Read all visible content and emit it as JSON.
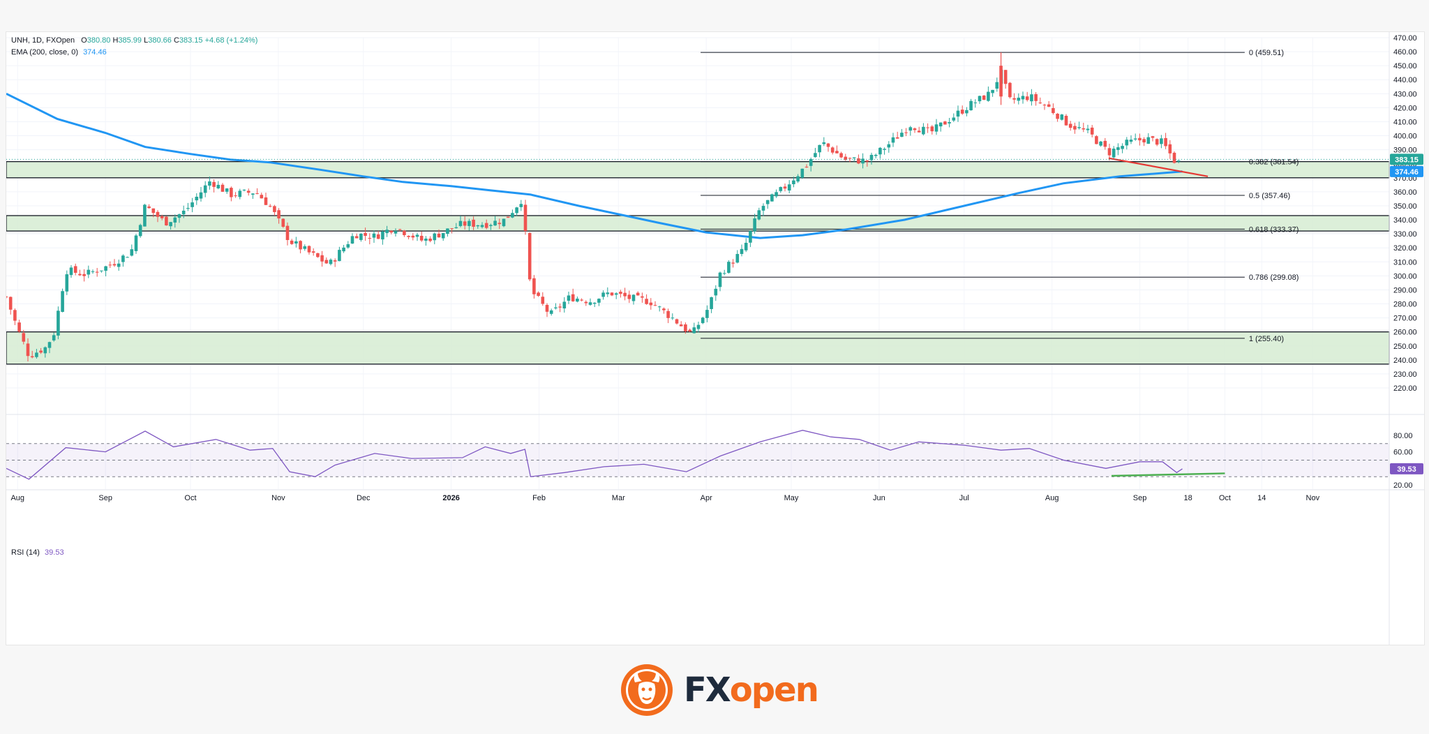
{
  "header": {
    "symbol": "UNH, 1D, FXOpen",
    "o_label": "O",
    "o": "380.80",
    "h_label": "H",
    "h": "385.99",
    "l_label": "L",
    "l": "380.66",
    "c_label": "C",
    "c": "383.15",
    "change": "+4.68 (+1.24%)",
    "ema_label": "EMA (200, close, 0)",
    "ema_value": "374.46",
    "rsi_label": "RSI (14)",
    "rsi_value": "39.53"
  },
  "colors": {
    "up": "#26a69a",
    "down": "#ef5350",
    "ema": "#2196f3",
    "rsi": "#7e57c2",
    "zone": "#d6ecd2",
    "trend_red": "#e53935",
    "trend_green": "#4caf50",
    "fib_line": "#131722"
  },
  "chart_data": {
    "type": "candlestick",
    "price_axis": {
      "ylim": [
        220,
        470
      ],
      "ticks": [
        "470.00",
        "460.00",
        "450.00",
        "440.00",
        "430.00",
        "420.00",
        "410.00",
        "400.00",
        "390.00",
        "380.00",
        "370.00",
        "360.00",
        "350.00",
        "340.00",
        "330.00",
        "320.00",
        "310.00",
        "300.00",
        "290.00",
        "280.00",
        "270.00",
        "260.00",
        "250.00",
        "240.00",
        "230.00",
        "220.00"
      ]
    },
    "time_axis": {
      "labels": [
        "Aug",
        "Sep",
        "Oct",
        "Nov",
        "Dec",
        "2026",
        "Feb",
        "Mar",
        "Apr",
        "May",
        "Jun",
        "Jul",
        "Aug",
        "Sep",
        "18",
        "Oct",
        "14",
        "Nov"
      ]
    },
    "price_tags": {
      "close": "383.15",
      "ema": "374.46"
    },
    "close_path": [
      {
        "date": "2025-07-28",
        "close": 285
      },
      {
        "date": "2025-08-01",
        "close": 262
      },
      {
        "date": "2025-08-05",
        "close": 243
      },
      {
        "date": "2025-08-11",
        "close": 249
      },
      {
        "date": "2025-08-14",
        "close": 260
      },
      {
        "date": "2025-08-18",
        "close": 304
      },
      {
        "date": "2025-08-25",
        "close": 301
      },
      {
        "date": "2025-09-02",
        "close": 307
      },
      {
        "date": "2025-09-10",
        "close": 317
      },
      {
        "date": "2025-09-15",
        "close": 350
      },
      {
        "date": "2025-09-22",
        "close": 338
      },
      {
        "date": "2025-09-29",
        "close": 346
      },
      {
        "date": "2025-10-08",
        "close": 368
      },
      {
        "date": "2025-10-15",
        "close": 358
      },
      {
        "date": "2025-10-24",
        "close": 360
      },
      {
        "date": "2025-10-29",
        "close": 350
      },
      {
        "date": "2025-11-05",
        "close": 325
      },
      {
        "date": "2025-11-13",
        "close": 315
      },
      {
        "date": "2025-11-19",
        "close": 308
      },
      {
        "date": "2025-11-28",
        "close": 330
      },
      {
        "date": "2025-12-05",
        "close": 328
      },
      {
        "date": "2025-12-12",
        "close": 335
      },
      {
        "date": "2025-12-22",
        "close": 325
      },
      {
        "date": "2026-01-05",
        "close": 337
      },
      {
        "date": "2026-01-13",
        "close": 337
      },
      {
        "date": "2026-01-20",
        "close": 340
      },
      {
        "date": "2026-01-26",
        "close": 355
      },
      {
        "date": "2026-01-29",
        "close": 290
      },
      {
        "date": "2026-02-05",
        "close": 272
      },
      {
        "date": "2026-02-12",
        "close": 285
      },
      {
        "date": "2026-02-19",
        "close": 282
      },
      {
        "date": "2026-02-26",
        "close": 288
      },
      {
        "date": "2026-03-05",
        "close": 284
      },
      {
        "date": "2026-03-12",
        "close": 282
      },
      {
        "date": "2026-03-20",
        "close": 270
      },
      {
        "date": "2026-03-27",
        "close": 258
      },
      {
        "date": "2026-04-02",
        "close": 278
      },
      {
        "date": "2026-04-06",
        "close": 302
      },
      {
        "date": "2026-04-14",
        "close": 318
      },
      {
        "date": "2026-04-20",
        "close": 348
      },
      {
        "date": "2026-04-28",
        "close": 362
      },
      {
        "date": "2026-05-06",
        "close": 378
      },
      {
        "date": "2026-05-12",
        "close": 395
      },
      {
        "date": "2026-05-20",
        "close": 383
      },
      {
        "date": "2026-05-28",
        "close": 382
      },
      {
        "date": "2026-06-05",
        "close": 395
      },
      {
        "date": "2026-06-12",
        "close": 408
      },
      {
        "date": "2026-06-19",
        "close": 402
      },
      {
        "date": "2026-06-26",
        "close": 412
      },
      {
        "date": "2026-07-03",
        "close": 422
      },
      {
        "date": "2026-07-10",
        "close": 430
      },
      {
        "date": "2026-07-14",
        "close": 445
      },
      {
        "date": "2026-07-17",
        "close": 425
      },
      {
        "date": "2026-07-24",
        "close": 428
      },
      {
        "date": "2026-07-31",
        "close": 420
      },
      {
        "date": "2026-08-07",
        "close": 408
      },
      {
        "date": "2026-08-14",
        "close": 402
      },
      {
        "date": "2026-08-21",
        "close": 388
      },
      {
        "date": "2026-08-28",
        "close": 395
      },
      {
        "date": "2026-09-03",
        "close": 398
      },
      {
        "date": "2026-09-09",
        "close": 395
      },
      {
        "date": "2026-09-14",
        "close": 380
      },
      {
        "date": "2026-09-16",
        "close": 383.15
      }
    ],
    "spike": {
      "date": "2026-07-14",
      "high": 459.51
    },
    "ema200": [
      {
        "date": "2025-07-28",
        "value": 430
      },
      {
        "date": "2025-08-15",
        "value": 412
      },
      {
        "date": "2025-09-01",
        "value": 402
      },
      {
        "date": "2025-09-15",
        "value": 392
      },
      {
        "date": "2025-10-01",
        "value": 387
      },
      {
        "date": "2025-10-15",
        "value": 383
      },
      {
        "date": "2025-10-29",
        "value": 381
      },
      {
        "date": "2025-11-15",
        "value": 376
      },
      {
        "date": "2025-12-01",
        "value": 371
      },
      {
        "date": "2025-12-15",
        "value": 367
      },
      {
        "date": "2026-01-01",
        "value": 364
      },
      {
        "date": "2026-01-15",
        "value": 361
      },
      {
        "date": "2026-01-29",
        "value": 358
      },
      {
        "date": "2026-02-15",
        "value": 350
      },
      {
        "date": "2026-03-01",
        "value": 344
      },
      {
        "date": "2026-03-15",
        "value": 338
      },
      {
        "date": "2026-04-01",
        "value": 331
      },
      {
        "date": "2026-04-20",
        "value": 327
      },
      {
        "date": "2026-05-05",
        "value": 329
      },
      {
        "date": "2026-05-20",
        "value": 333
      },
      {
        "date": "2026-06-10",
        "value": 340
      },
      {
        "date": "2026-07-01",
        "value": 350
      },
      {
        "date": "2026-07-20",
        "value": 359
      },
      {
        "date": "2026-08-05",
        "value": 366
      },
      {
        "date": "2026-08-25",
        "value": 371
      },
      {
        "date": "2026-09-16",
        "value": 374.46
      }
    ],
    "zones": [
      {
        "from": 370,
        "to": 381.54
      },
      {
        "from": 332,
        "to": 343
      },
      {
        "from": 237,
        "to": 260
      }
    ],
    "fib_anchor": {
      "start_date": "2026-03-30",
      "end_date": "2026-10-08"
    },
    "fib_levels": [
      {
        "ratio": "0",
        "price": 459.51,
        "label": "0 (459.51)"
      },
      {
        "ratio": "0.382",
        "price": 381.54,
        "label": "0.382 (381.54)"
      },
      {
        "ratio": "0.5",
        "price": 357.46,
        "label": "0.5 (357.46)"
      },
      {
        "ratio": "0.618",
        "price": 333.37,
        "label": "0.618 (333.37)"
      },
      {
        "ratio": "0.786",
        "price": 299.08,
        "label": "0.786 (299.08)"
      },
      {
        "ratio": "1",
        "price": 255.4,
        "label": "1 (255.40)"
      }
    ],
    "trendline_price": {
      "start_date": "2026-08-21",
      "start": 384,
      "end_date": "2026-09-25",
      "end": 371
    },
    "rsi": {
      "ylim": [
        15,
        95
      ],
      "ticks": [
        "80.00",
        "60.00",
        "40.00",
        "20.00"
      ],
      "band": [
        30,
        70
      ],
      "midline": 50,
      "values": [
        {
          "date": "2025-07-28",
          "value": 40
        },
        {
          "date": "2025-08-05",
          "value": 27
        },
        {
          "date": "2025-08-18",
          "value": 65
        },
        {
          "date": "2025-09-01",
          "value": 60
        },
        {
          "date": "2025-09-15",
          "value": 85
        },
        {
          "date": "2025-09-25",
          "value": 66
        },
        {
          "date": "2025-10-10",
          "value": 75
        },
        {
          "date": "2025-10-22",
          "value": 62
        },
        {
          "date": "2025-10-30",
          "value": 64
        },
        {
          "date": "2025-11-05",
          "value": 36
        },
        {
          "date": "2025-11-14",
          "value": 30
        },
        {
          "date": "2025-11-21",
          "value": 44
        },
        {
          "date": "2025-12-05",
          "value": 58
        },
        {
          "date": "2025-12-18",
          "value": 52
        },
        {
          "date": "2026-01-05",
          "value": 53
        },
        {
          "date": "2026-01-13",
          "value": 66
        },
        {
          "date": "2026-01-22",
          "value": 58
        },
        {
          "date": "2026-01-27",
          "value": 63
        },
        {
          "date": "2026-01-29",
          "value": 30
        },
        {
          "date": "2026-02-10",
          "value": 35
        },
        {
          "date": "2026-02-24",
          "value": 42
        },
        {
          "date": "2026-03-10",
          "value": 45
        },
        {
          "date": "2026-03-25",
          "value": 36
        },
        {
          "date": "2026-04-06",
          "value": 55
        },
        {
          "date": "2026-04-20",
          "value": 72
        },
        {
          "date": "2026-05-05",
          "value": 86
        },
        {
          "date": "2026-05-15",
          "value": 78
        },
        {
          "date": "2026-05-25",
          "value": 75
        },
        {
          "date": "2026-06-05",
          "value": 62
        },
        {
          "date": "2026-06-15",
          "value": 72
        },
        {
          "date": "2026-07-01",
          "value": 68
        },
        {
          "date": "2026-07-14",
          "value": 62
        },
        {
          "date": "2026-07-24",
          "value": 64
        },
        {
          "date": "2026-08-05",
          "value": 50
        },
        {
          "date": "2026-08-20",
          "value": 40
        },
        {
          "date": "2026-09-01",
          "value": 48
        },
        {
          "date": "2026-09-09",
          "value": 48
        },
        {
          "date": "2026-09-14",
          "value": 35
        },
        {
          "date": "2026-09-16",
          "value": 39.53
        }
      ],
      "trendline": {
        "start_date": "2026-08-22",
        "start": 31,
        "end_date": "2026-10-01",
        "end": 34
      }
    }
  },
  "logo": {
    "part1": "FX",
    "part2": "open"
  }
}
